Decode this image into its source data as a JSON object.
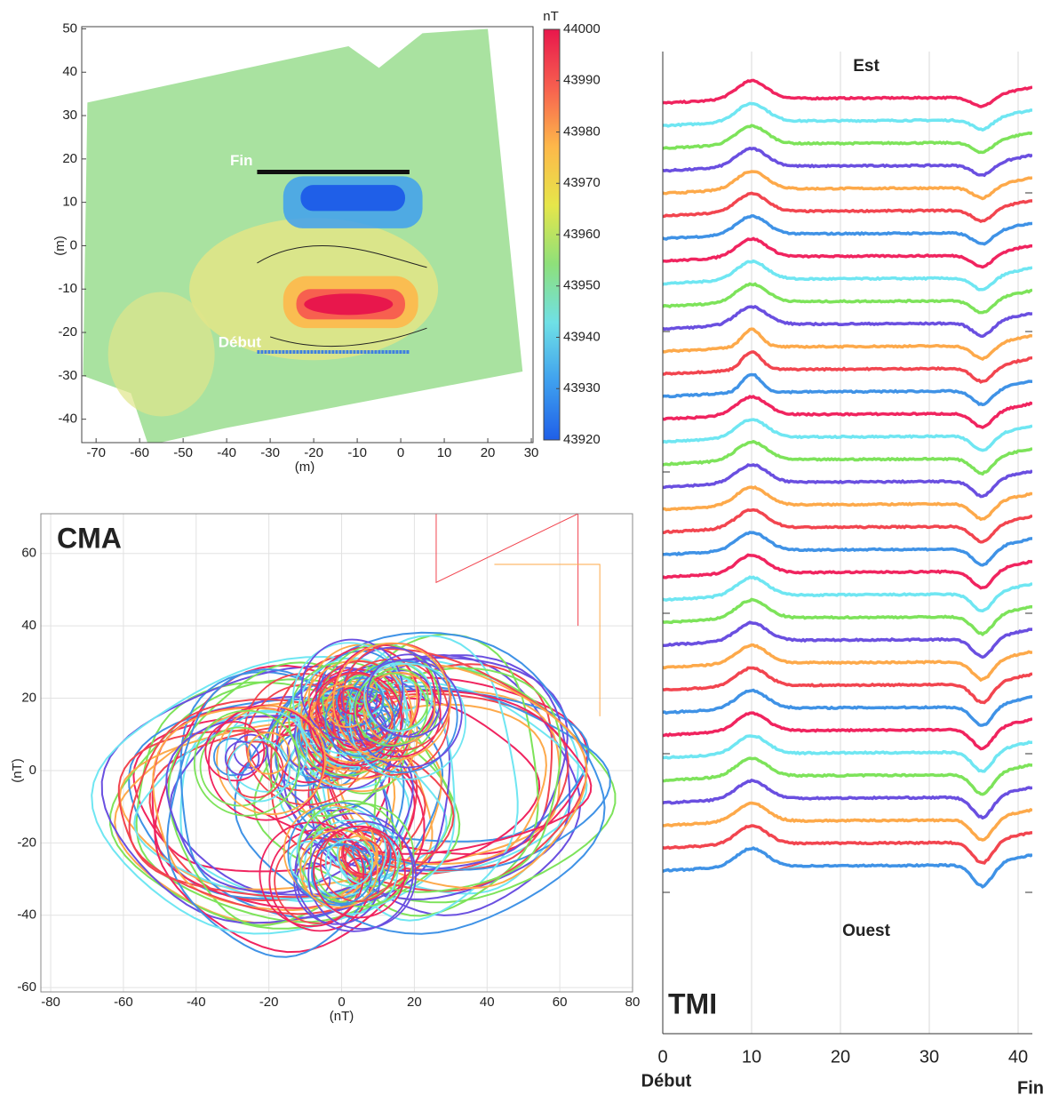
{
  "chart_data": [
    {
      "type": "heatmap",
      "xlabel": "(m)",
      "ylabel": "(m)",
      "xlim": [
        -73.3,
        30.4
      ],
      "ylim": [
        -45.4,
        50.5
      ],
      "xticks": [
        -70,
        -60,
        -50,
        -40,
        -30,
        -20,
        -10,
        0,
        10,
        20,
        30
      ],
      "yticks": [
        -40,
        -30,
        -20,
        -10,
        0,
        10,
        20,
        30,
        40,
        50
      ],
      "annotations": [
        "Fin",
        "Début"
      ],
      "colorbar": {
        "label": "nT",
        "lim": [
          43920,
          44000
        ],
        "ticks": [
          43920,
          43930,
          43940,
          43950,
          43960,
          43970,
          43980,
          43990,
          44000
        ],
        "colors": [
          "#1f5fe8",
          "#3fa0ee",
          "#6fe0e6",
          "#8ee07a",
          "#e6e64a",
          "#fdb84a",
          "#f7604f",
          "#e8174c"
        ]
      }
    },
    {
      "type": "line",
      "title": "CMA",
      "xlabel": "(nT)",
      "ylabel": "(nT)",
      "xlim": [
        -82.7,
        80
      ],
      "ylim": [
        -61.2,
        71
      ],
      "xticks": [
        -80,
        -60,
        -40,
        -20,
        0,
        20,
        40,
        60,
        80
      ],
      "yticks": [
        -60,
        -40,
        -20,
        0,
        20,
        40,
        60
      ],
      "grid": true,
      "colors": [
        "#f0245f",
        "#6fe6f2",
        "#7de35a",
        "#6a4fe0",
        "#fda94a",
        "#f2454f",
        "#3f92e6"
      ]
    },
    {
      "type": "line",
      "title": "TMI",
      "top_label": "Est",
      "bottom_label": "Ouest",
      "start_label": "Début",
      "end_label": "Fin",
      "xlim": [
        0,
        41.6
      ],
      "xticks": [
        0,
        10,
        20,
        30,
        40
      ],
      "grid": true,
      "colors": [
        "#f0245f",
        "#6fe6f2",
        "#7de35a",
        "#6a4fe0",
        "#fda94a",
        "#f2454f",
        "#3f92e6"
      ]
    }
  ]
}
